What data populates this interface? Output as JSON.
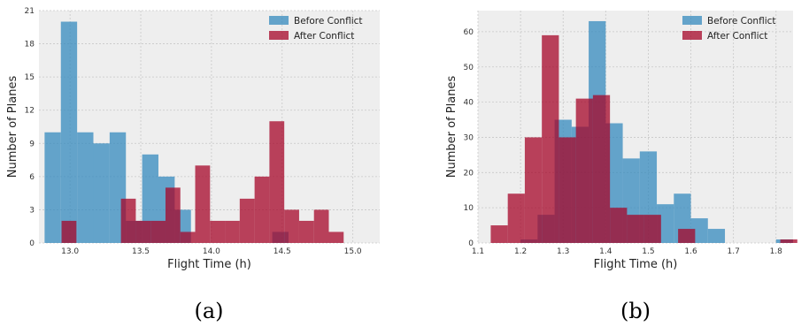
{
  "chart_data": [
    {
      "type": "histogram",
      "panel_label": "(a)",
      "xlabel": "Flight Time (h)",
      "ylabel": "Number of Planes",
      "xlim": [
        12.78,
        15.19
      ],
      "ylim": [
        0,
        21
      ],
      "x_ticks": [
        13.0,
        13.5,
        14.0,
        14.5,
        15.0
      ],
      "x_tick_labels": [
        "13.0",
        "13.5",
        "14.0",
        "14.5",
        "15.0"
      ],
      "y_ticks": [
        0,
        3,
        6,
        9,
        12,
        15,
        18,
        21
      ],
      "y_tick_labels": [
        "0",
        "3",
        "6",
        "9",
        "12",
        "15",
        "18",
        "21"
      ],
      "grid": true,
      "legend_position": "top-right",
      "series": [
        {
          "name": "Before Conflict",
          "color": "#348abd",
          "bin_edges": [
            12.82,
            12.935,
            13.05,
            13.165,
            13.28,
            13.395,
            13.51,
            13.625,
            13.74,
            13.855,
            13.97,
            14.085,
            14.2,
            14.315,
            14.43,
            14.545,
            14.66
          ],
          "values": [
            10,
            20,
            10,
            9,
            10,
            2,
            8,
            6,
            3,
            0,
            0,
            0,
            0,
            0,
            1,
            0
          ]
        },
        {
          "name": "After Conflict",
          "color": "#a60628",
          "bin_edges": [
            12.94,
            13.045,
            13.15,
            13.255,
            13.36,
            13.465,
            13.57,
            13.675,
            13.78,
            13.885,
            13.99,
            14.095,
            14.2,
            14.305,
            14.41,
            14.515,
            14.62,
            14.725,
            14.83,
            14.935,
            15.04,
            15.145
          ],
          "values": [
            2,
            0,
            0,
            0,
            4,
            2,
            2,
            5,
            1,
            7,
            2,
            2,
            4,
            6,
            11,
            3,
            2,
            3,
            1,
            0,
            0
          ]
        }
      ]
    },
    {
      "type": "histogram",
      "panel_label": "(b)",
      "xlabel": "Flight Time (h)",
      "ylabel": "Number of Planes",
      "xlim": [
        1.1,
        1.84
      ],
      "ylim": [
        0,
        66
      ],
      "x_ticks": [
        1.1,
        1.2,
        1.3,
        1.4,
        1.5,
        1.6,
        1.7,
        1.8
      ],
      "x_tick_labels": [
        "1.1",
        "1.2",
        "1.3",
        "1.4",
        "1.5",
        "1.6",
        "1.7",
        "1.8"
      ],
      "y_ticks": [
        0,
        10,
        20,
        30,
        40,
        50,
        60
      ],
      "y_tick_labels": [
        "0",
        "10",
        "20",
        "30",
        "40",
        "50",
        "60"
      ],
      "grid": true,
      "legend_position": "top-right",
      "series": [
        {
          "name": "Before Conflict",
          "color": "#348abd",
          "bin_edges": [
            1.2,
            1.24,
            1.28,
            1.32,
            1.36,
            1.4,
            1.44,
            1.48,
            1.52,
            1.56,
            1.6,
            1.64,
            1.68,
            1.72,
            1.76,
            1.8,
            1.84
          ],
          "values": [
            1,
            8,
            35,
            33,
            63,
            34,
            24,
            26,
            11,
            14,
            7,
            4,
            0,
            0,
            0,
            1
          ]
        },
        {
          "name": "After Conflict",
          "color": "#a60628",
          "bin_edges": [
            1.13,
            1.17,
            1.21,
            1.25,
            1.29,
            1.33,
            1.37,
            1.41,
            1.45,
            1.49,
            1.53,
            1.57,
            1.61,
            1.65,
            1.69,
            1.73,
            1.77,
            1.81,
            1.85
          ],
          "values": [
            5,
            14,
            30,
            59,
            30,
            41,
            42,
            10,
            8,
            8,
            0,
            4,
            0,
            0,
            0,
            0,
            0,
            1
          ]
        }
      ]
    }
  ]
}
